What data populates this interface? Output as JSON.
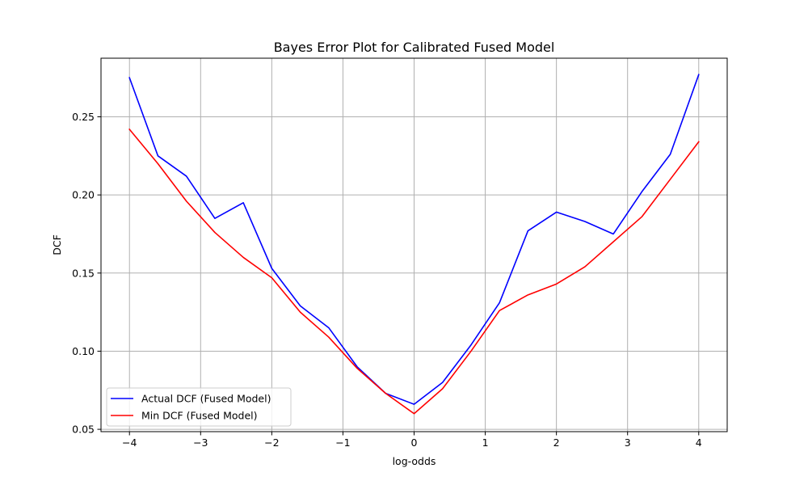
{
  "chart_data": {
    "type": "line",
    "title": "Bayes Error Plot for Calibrated Fused Model",
    "xlabel": "log-odds",
    "ylabel": "DCF",
    "xlim": [
      -4.4,
      4.4
    ],
    "ylim": [
      0.0485,
      0.2875
    ],
    "xticks": [
      -4,
      -3,
      -2,
      -1,
      0,
      1,
      2,
      3,
      4
    ],
    "xtick_labels": [
      "−4",
      "−3",
      "−2",
      "−1",
      "0",
      "1",
      "2",
      "3",
      "4"
    ],
    "yticks": [
      0.05,
      0.1,
      0.15,
      0.2,
      0.25
    ],
    "ytick_labels": [
      "0.05",
      "0.10",
      "0.15",
      "0.20",
      "0.25"
    ],
    "grid": true,
    "legend_position": "lower-left",
    "x": [
      -4.0,
      -3.6,
      -3.2,
      -2.8,
      -2.4,
      -2.0,
      -1.6,
      -1.2,
      -0.8,
      -0.4,
      0.0,
      0.4,
      0.8,
      1.2,
      1.6,
      2.0,
      2.4,
      2.8,
      3.2,
      3.6,
      4.0
    ],
    "series": [
      {
        "name": "Actual DCF (Fused Model)",
        "color": "#0000ff",
        "values": [
          0.275,
          0.225,
          0.212,
          0.185,
          0.195,
          0.153,
          0.129,
          0.115,
          0.09,
          0.073,
          0.066,
          0.08,
          0.104,
          0.131,
          0.177,
          0.189,
          0.183,
          0.175,
          0.202,
          0.226,
          0.277
        ]
      },
      {
        "name": "Min DCF (Fused Model)",
        "color": "#ff0000",
        "values": [
          0.242,
          0.22,
          0.196,
          0.176,
          0.16,
          0.147,
          0.125,
          0.109,
          0.089,
          0.073,
          0.06,
          0.076,
          0.1,
          0.126,
          0.136,
          0.143,
          0.154,
          0.17,
          0.186,
          0.21,
          0.234
        ]
      }
    ]
  }
}
